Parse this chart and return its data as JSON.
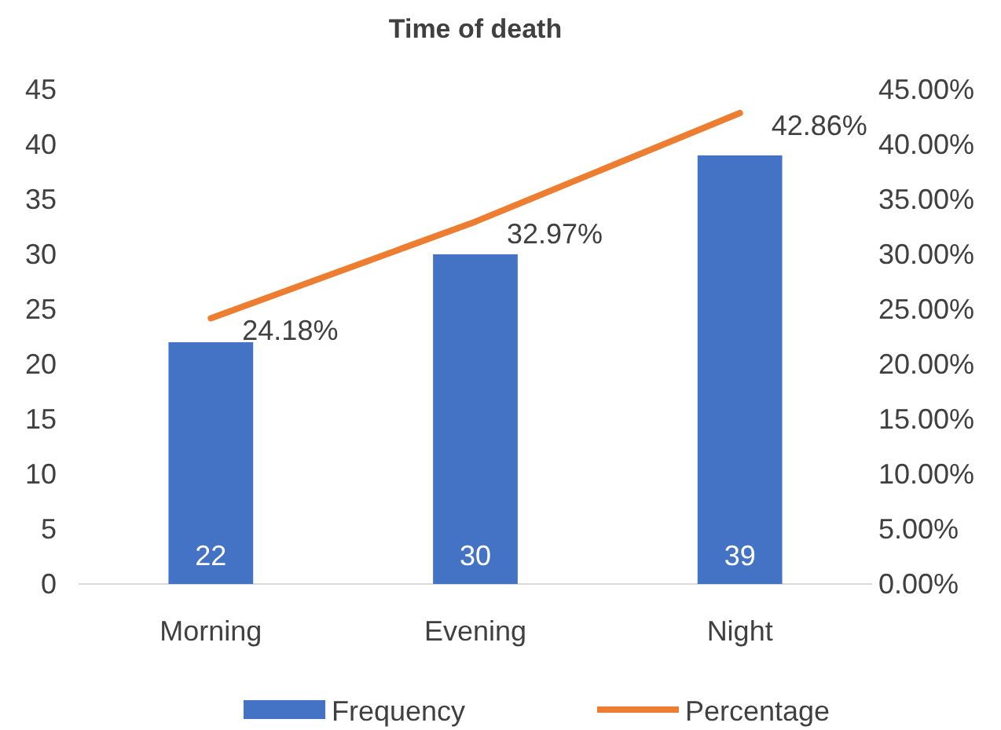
{
  "chart_data": {
    "type": "bar",
    "title": "Time of death",
    "categories": [
      "Morning",
      "Evening",
      "Night"
    ],
    "series": [
      {
        "name": "Frequency",
        "color": "#4472c4",
        "values": [
          22,
          30,
          39
        ],
        "value_labels": [
          "22",
          "30",
          "39"
        ]
      },
      {
        "name": "Percentage",
        "type": "line",
        "axis": "y2",
        "color": "#ed7d31",
        "values": [
          0.2418,
          0.3297,
          0.4286
        ],
        "value_labels": [
          "24.18%",
          "32.97%",
          "42.86%"
        ],
        "marker": "none"
      }
    ],
    "ylim": [
      0,
      45
    ],
    "yticks": [
      0,
      5,
      10,
      15,
      20,
      25,
      30,
      35,
      40,
      45
    ],
    "y2lim": [
      0,
      0.45
    ],
    "y2ticks": [
      {
        "value": 0,
        "label": "0.00%"
      },
      {
        "value": 0.05,
        "label": "5.00%"
      },
      {
        "value": 0.1,
        "label": "10.00%"
      },
      {
        "value": 0.15,
        "label": "15.00%"
      },
      {
        "value": 0.2,
        "label": "20.00%"
      },
      {
        "value": 0.25,
        "label": "25.00%"
      },
      {
        "value": 0.3,
        "label": "30.00%"
      },
      {
        "value": 0.35,
        "label": "35.00%"
      },
      {
        "value": 0.4,
        "label": "40.00%"
      },
      {
        "value": 0.45,
        "label": "45.00%"
      }
    ],
    "grid": false,
    "legend": "bottom"
  }
}
